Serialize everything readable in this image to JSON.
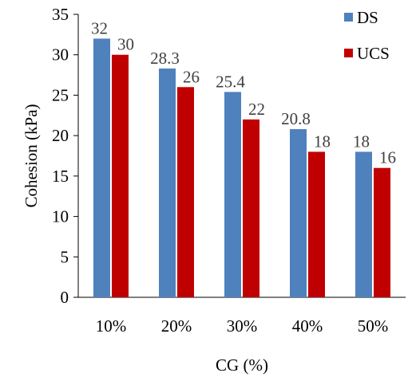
{
  "chart_data": {
    "type": "bar",
    "categories": [
      "10%",
      "20%",
      "30%",
      "40%",
      "50%"
    ],
    "series": [
      {
        "name": "DS",
        "values": [
          32,
          28.3,
          25.4,
          20.8,
          18
        ],
        "color": "#4f81bd"
      },
      {
        "name": "UCS",
        "values": [
          30,
          26,
          22,
          18,
          16
        ],
        "color": "#c00000"
      }
    ],
    "data_labels": [
      [
        "32",
        "28.3",
        "25.4",
        "20.8",
        "18"
      ],
      [
        "30",
        "26",
        "22",
        "18",
        "16"
      ]
    ],
    "xlabel": "CG (%)",
    "ylabel": "Cohesion (kPa)",
    "ylim": [
      0,
      35
    ],
    "yticks": [
      0,
      5,
      10,
      15,
      20,
      25,
      30,
      35
    ],
    "grid": false,
    "legend_position": "top-right"
  }
}
